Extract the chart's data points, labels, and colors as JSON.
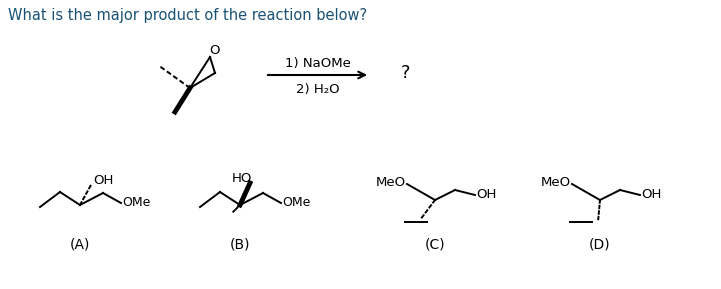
{
  "title": "What is the major product of the reaction below?",
  "title_color": "#1a5276",
  "title_fontsize": 10.5,
  "background_color": "#ffffff",
  "labels": [
    "(A)",
    "(B)",
    "(C)",
    "(D)"
  ],
  "label_fontsize": 10,
  "mol_fontsize": 9.5
}
